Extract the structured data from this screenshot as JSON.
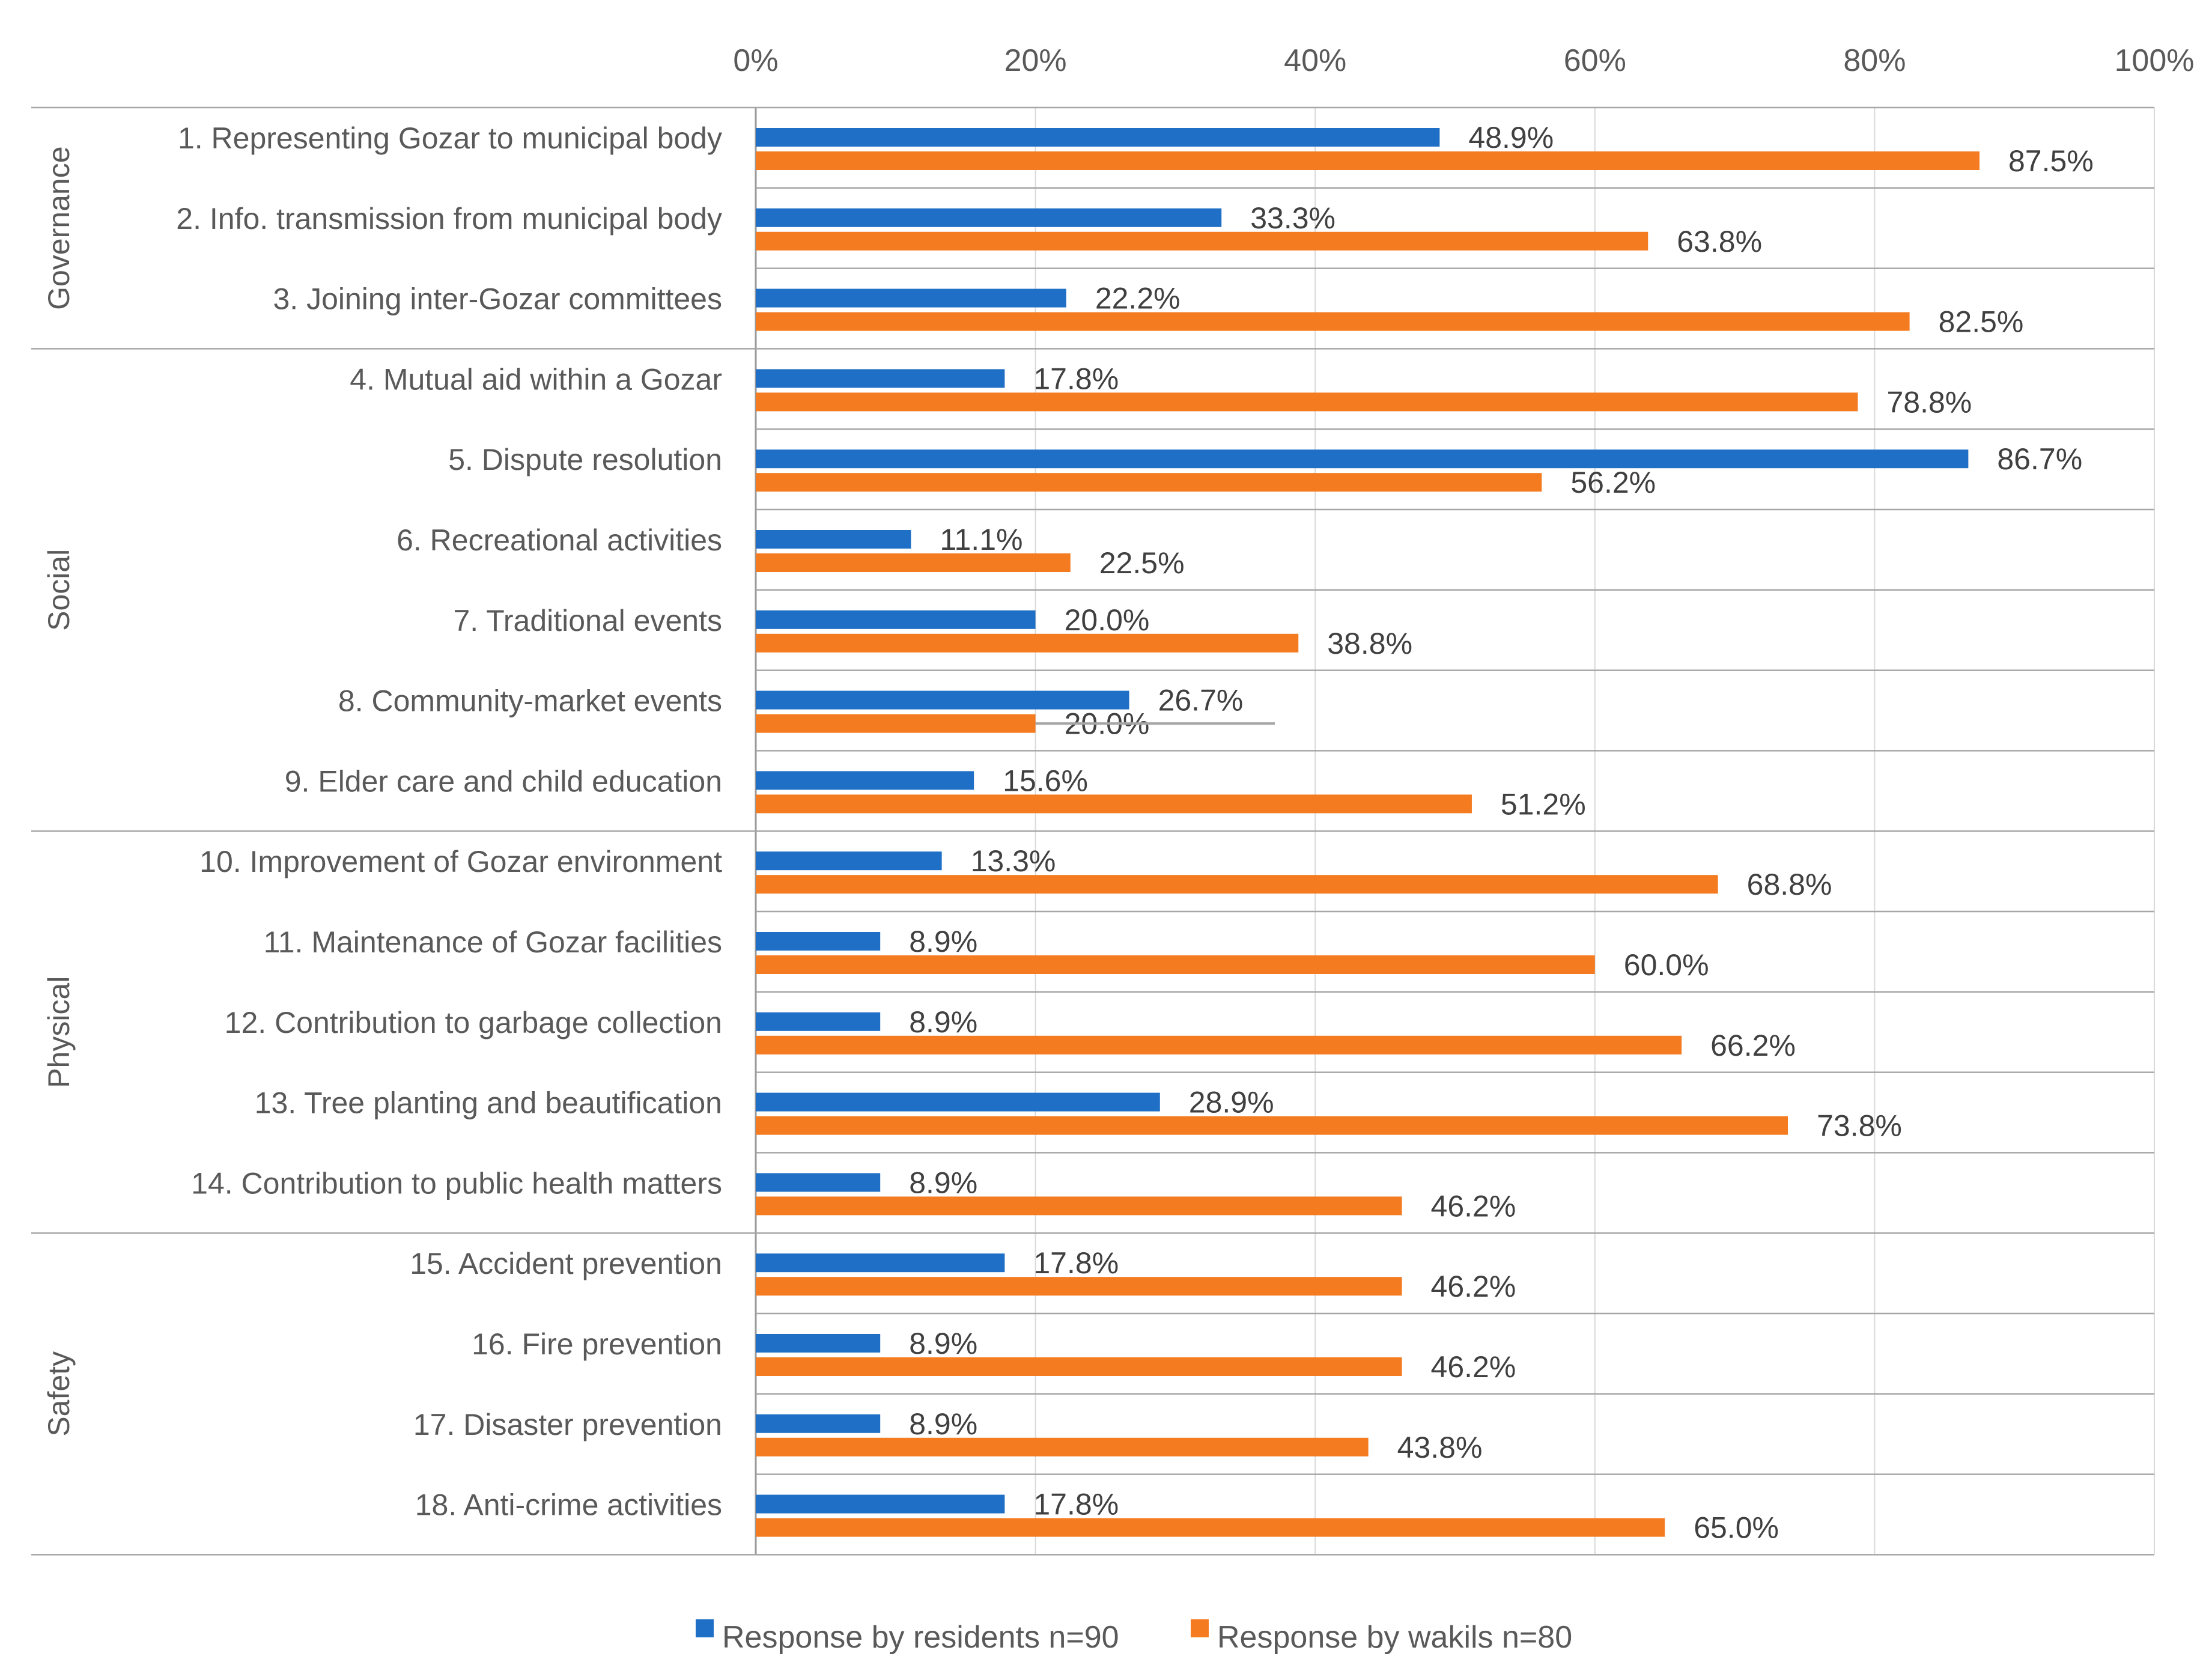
{
  "chart_data": {
    "type": "bar",
    "orientation": "horizontal",
    "xlim": [
      0,
      100
    ],
    "xticks": [
      "0%",
      "20%",
      "40%",
      "60%",
      "80%",
      "100%"
    ],
    "groups": [
      {
        "name": "Governance",
        "count": 3
      },
      {
        "name": "Social",
        "count": 6
      },
      {
        "name": "Physical",
        "count": 5
      },
      {
        "name": "Safety",
        "count": 4
      }
    ],
    "categories": [
      "1. Representing Gozar to municipal body",
      "2. Info. transmission from municipal body",
      "3. Joining inter-Gozar committees",
      "4. Mutual aid within a Gozar",
      "5. Dispute resolution",
      "6. Recreational activities",
      "7. Traditional events",
      "8. Community-market events",
      "9. Elder care and child education",
      "10. Improvement of Gozar environment",
      "11. Maintenance of Gozar facilities",
      "12. Contribution to garbage collection",
      "13. Tree planting and beautification",
      "14. Contribution to public health matters",
      "15. Accident prevention",
      "16. Fire prevention",
      "17. Disaster prevention",
      "18. Anti-crime activities"
    ],
    "series": [
      {
        "name": "Response by residents n=90",
        "color": "#1F6FC6",
        "values": [
          48.9,
          33.3,
          22.2,
          17.8,
          86.7,
          11.1,
          20.0,
          26.7,
          15.6,
          13.3,
          8.9,
          8.9,
          28.9,
          8.9,
          17.8,
          8.9,
          8.9,
          17.8
        ],
        "labels": [
          "48.9%",
          "33.3%",
          "22.2%",
          "17.8%",
          "86.7%",
          "11.1%",
          "20.0%",
          "26.7%",
          "15.6%",
          "13.3%",
          "8.9%",
          "8.9%",
          "28.9%",
          "8.9%",
          "17.8%",
          "8.9%",
          "8.9%",
          "17.8%"
        ]
      },
      {
        "name": "Response by wakils n=80",
        "color": "#F47B20",
        "values": [
          87.5,
          63.8,
          82.5,
          78.8,
          56.2,
          22.5,
          38.8,
          20.0,
          51.2,
          68.8,
          60.0,
          66.2,
          73.8,
          46.2,
          46.2,
          46.2,
          43.8,
          65.0
        ],
        "labels": [
          "87.5%",
          "63.8%",
          "82.5%",
          "78.8%",
          "56.2%",
          "22.5%",
          "38.8%",
          "20.0%",
          "51.2%",
          "68.8%",
          "60.0%",
          "66.2%",
          "73.8%",
          "46.2%",
          "46.2%",
          "46.2%",
          "43.8%",
          "65.0%"
        ]
      }
    ],
    "title": "",
    "xlabel": "",
    "ylabel": "",
    "grid": true,
    "legend_position": "bottom"
  }
}
